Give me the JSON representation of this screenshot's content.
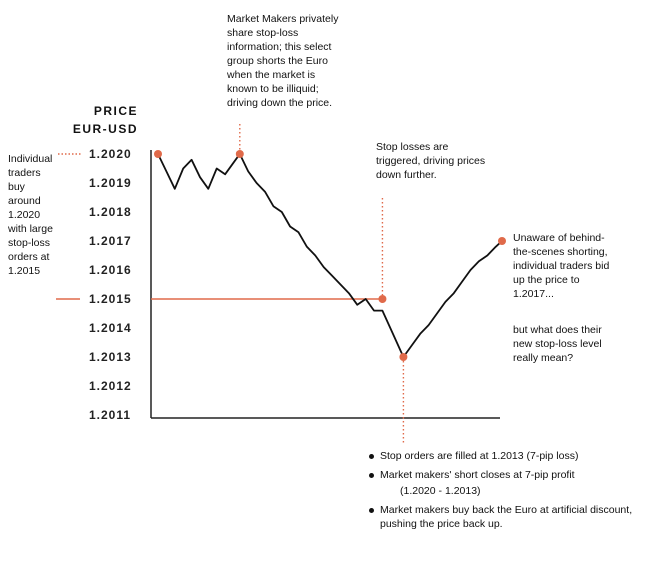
{
  "chart_data": {
    "type": "line",
    "title": "",
    "ylabel": [
      "PRICE",
      "EUR-USD"
    ],
    "xlabel": "",
    "ylim": [
      1.2011,
      1.202
    ],
    "y_ticks": [
      "1.2020",
      "1.2019",
      "1.2018",
      "1.2017",
      "1.2016",
      "1.2015",
      "1.2014",
      "1.2013",
      "1.2012",
      "1.2011"
    ],
    "series": [
      {
        "points": [
          [
            0,
            1.202
          ],
          [
            4,
            1.20194
          ],
          [
            8,
            1.20188
          ],
          [
            12,
            1.20195
          ],
          [
            16,
            1.20198
          ],
          [
            20,
            1.20192
          ],
          [
            24,
            1.20188
          ],
          [
            28,
            1.20195
          ],
          [
            32,
            1.20193
          ],
          [
            36,
            1.20197
          ],
          [
            39,
            1.202
          ],
          [
            43,
            1.20194
          ],
          [
            47,
            1.2019
          ],
          [
            51,
            1.20187
          ],
          [
            55,
            1.20182
          ],
          [
            59,
            1.2018
          ],
          [
            63,
            1.20175
          ],
          [
            67,
            1.20173
          ],
          [
            71,
            1.20168
          ],
          [
            75,
            1.20165
          ],
          [
            79,
            1.20161
          ],
          [
            83,
            1.20158
          ],
          [
            87,
            1.20155
          ],
          [
            91,
            1.20152
          ],
          [
            95,
            1.20148
          ],
          [
            99,
            1.2015
          ],
          [
            103,
            1.20146
          ],
          [
            107,
            1.20146
          ],
          [
            112,
            1.20138
          ],
          [
            117,
            1.2013
          ],
          [
            121,
            1.20134
          ],
          [
            125,
            1.20138
          ],
          [
            129,
            1.20141
          ],
          [
            133,
            1.20145
          ],
          [
            137,
            1.20149
          ],
          [
            141,
            1.20152
          ],
          [
            145,
            1.20156
          ],
          [
            149,
            1.2016
          ],
          [
            153,
            1.20163
          ],
          [
            157,
            1.20165
          ],
          [
            161,
            1.20168
          ],
          [
            164,
            1.2017
          ]
        ]
      }
    ],
    "highlights": [
      {
        "x": 0,
        "y": 1.202
      },
      {
        "x": 39,
        "y": 1.202
      },
      {
        "x": 107,
        "y": 1.2015
      },
      {
        "x": 117,
        "y": 1.2013
      },
      {
        "x": 164,
        "y": 1.2017
      }
    ],
    "accent_color": "#e06a4a",
    "line_color": "#111111"
  },
  "annotations": {
    "left_note": [
      "Individual",
      "traders",
      "buy",
      "around",
      "1.2020",
      "with large",
      "stop-loss",
      "orders at",
      "1.2015"
    ],
    "top_note": [
      "Market Makers privately",
      "share stop-loss",
      "information; this select",
      "group shorts the Euro",
      "when the market is",
      "known to be illiquid;",
      "driving down the price."
    ],
    "middle_note": [
      "Stop losses are",
      "triggered, driving prices",
      "down further."
    ],
    "right_note_1": [
      "Unaware of behind-",
      "the-scenes shorting,",
      "individual traders bid",
      "up the price to",
      "1.2017..."
    ],
    "right_note_2": [
      "but what does their",
      "new stop-loss level",
      "really mean?"
    ],
    "bullets": [
      {
        "text": "Stop orders are filled at 1.2013 (7-pip loss)",
        "sub": ""
      },
      {
        "text": "Market makers' short closes at 7-pip profit",
        "sub": "(1.2020 - 1.2013)"
      },
      {
        "text": "Market makers buy back the Euro at artificial discount, pushing the price back up.",
        "sub": ""
      }
    ]
  }
}
